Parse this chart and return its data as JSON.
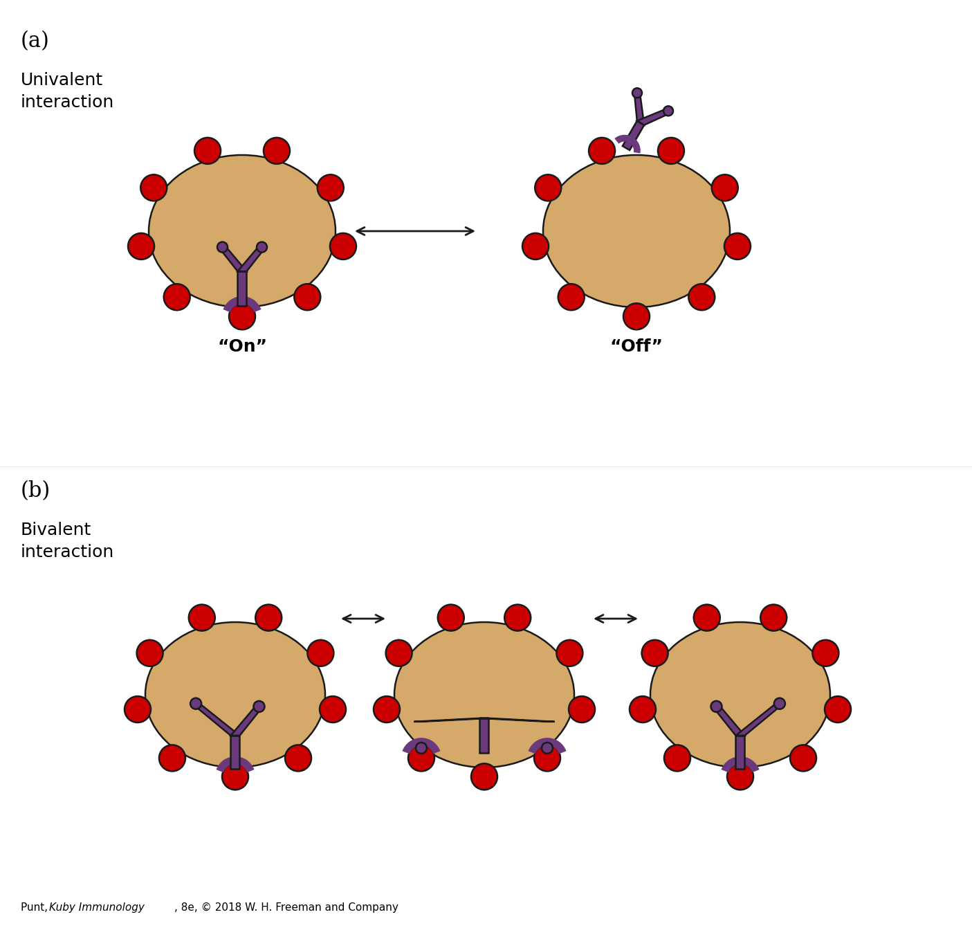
{
  "bg_color": "#ffffff",
  "antigen_color": "#D4A96A",
  "antigen_edge_color": "#1a1a1a",
  "epitope_color": "#CC0000",
  "epitope_edge_color": "#1a1a1a",
  "receptor_color": "#6B3A7D",
  "receptor_edge_color": "#1a1a1a",
  "arrow_color": "#1a1a1a",
  "label_a": "(a)",
  "label_b": "(b)",
  "title_a": "Univalent\ninteraction",
  "title_b": "Bivalent\ninteraction",
  "on_label": "“On”",
  "off_label": "“Off”",
  "footnote": "Punt, Kuby Immunology, 8e, © 2018 W. H. Freeman and Company"
}
